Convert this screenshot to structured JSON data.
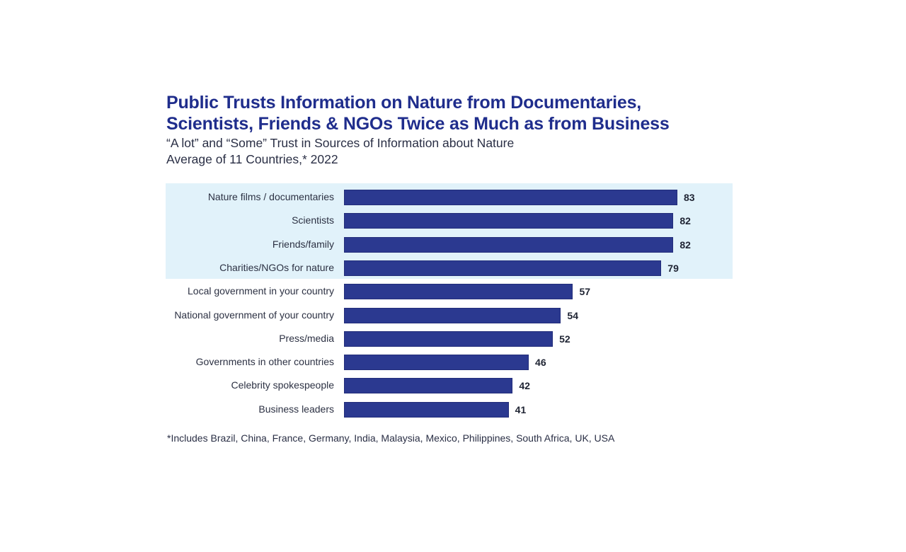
{
  "chart_data": {
    "type": "bar",
    "orientation": "horizontal",
    "title": "Public Trusts Information on Nature from Documentaries, Scientists, Friends & NGOs Twice as Much as from Business",
    "title_lines": [
      "Public Trusts Information on Nature from Documentaries,",
      "Scientists, Friends & NGOs Twice as Much as from Business"
    ],
    "subtitle_lines": [
      "“A lot” and “Some” Trust in Sources of Information about Nature",
      "Average of 11 Countries,* 2022"
    ],
    "xlabel": "",
    "ylabel": "",
    "categories": [
      "Nature films / documentaries",
      "Scientists",
      "Friends/family",
      "Charities/NGOs for nature",
      "Local government in your country",
      "National government of your country",
      "Press/media",
      "Governments in other countries",
      "Celebrity spokespeople",
      "Business leaders"
    ],
    "values": [
      83,
      82,
      82,
      79,
      57,
      54,
      52,
      46,
      42,
      41
    ],
    "unit": "%",
    "highlighted_categories": [
      "Nature films / documentaries",
      "Scientists",
      "Friends/family",
      "Charities/NGOs for nature"
    ],
    "xlim": [
      0,
      100
    ],
    "grid": false,
    "legend": "none",
    "data_labels": true,
    "footnote": "*Includes Brazil, China, France, Germany, India, Malaysia, Mexico, Philippines, South Africa, UK, USA",
    "colors": {
      "bar": "#2b3990",
      "highlight_band": "#e1f2fa",
      "title": "#1f2d8c"
    }
  }
}
